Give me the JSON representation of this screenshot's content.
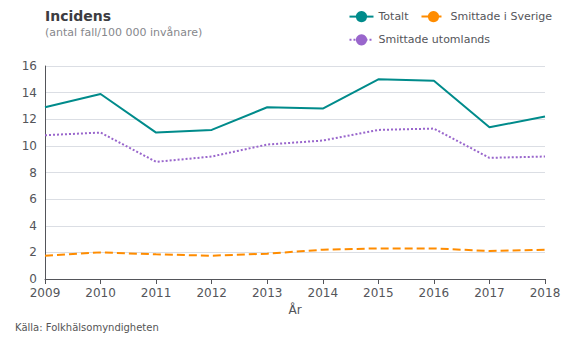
{
  "chart_data": {
    "type": "line",
    "title": "Incidens",
    "subtitle": "(antal fall/100 000 invånare)",
    "xlabel": "År",
    "annotations": [
      "Källa: Folkhälsomyndigheten"
    ],
    "categories": [
      "2009",
      "2010",
      "2011",
      "2012",
      "2013",
      "2014",
      "2015",
      "2016",
      "2017",
      "2018"
    ],
    "series": [
      {
        "name": "Totalt",
        "color": "#008B8B",
        "line_style": "solid",
        "values": [
          12.9,
          13.9,
          11.0,
          11.2,
          12.9,
          12.8,
          15.0,
          14.9,
          11.4,
          12.2
        ]
      },
      {
        "name": "Smittade i Sverige",
        "color": "#FF8C00",
        "line_style": "dashed",
        "values": [
          1.75,
          2.0,
          1.85,
          1.75,
          1.9,
          2.2,
          2.3,
          2.3,
          2.1,
          2.2
        ]
      },
      {
        "name": "Smittade utomlands",
        "color": "#9966CC",
        "line_style": "dotted",
        "values": [
          10.8,
          11.0,
          8.8,
          9.2,
          10.1,
          10.4,
          11.2,
          11.3,
          9.1,
          9.2
        ]
      }
    ],
    "ylim": [
      0,
      16
    ],
    "yticks": [
      0,
      2,
      4,
      6,
      8,
      10,
      12,
      14,
      16
    ],
    "grid": true,
    "legend": "top"
  }
}
